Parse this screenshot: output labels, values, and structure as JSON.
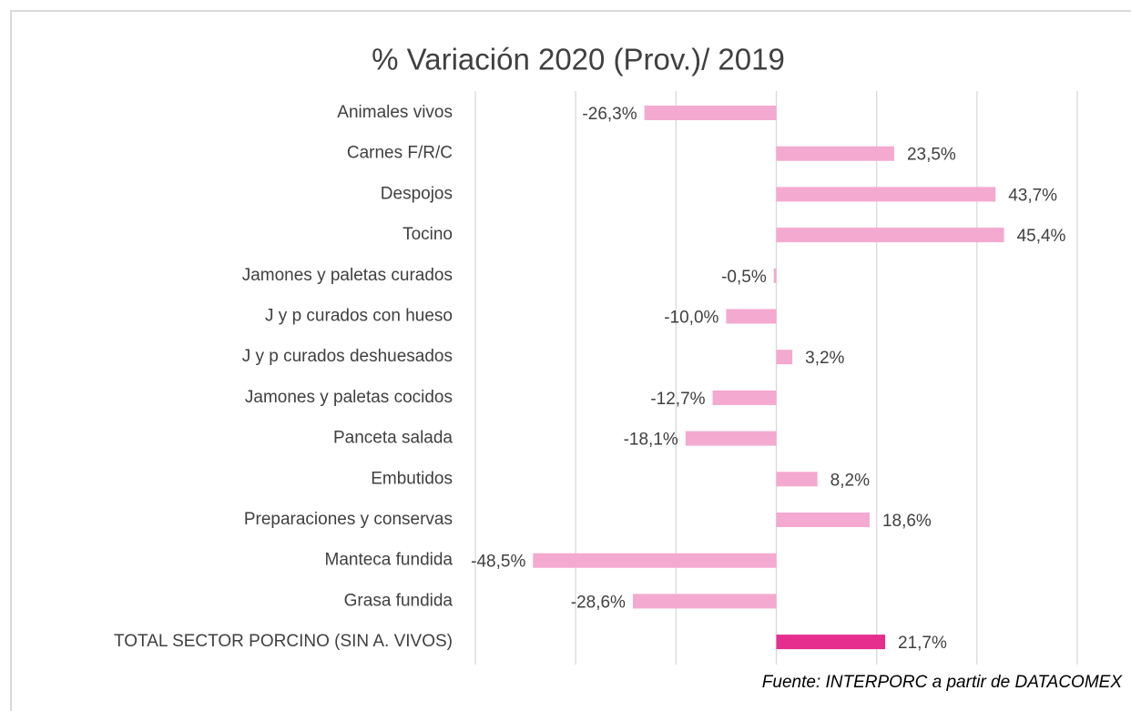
{
  "chart_data": {
    "type": "bar",
    "orientation": "horizontal",
    "title": "% Variación 2020 (Prov.)/ 2019",
    "categories": [
      "Animales vivos",
      "Carnes F/R/C",
      "Despojos",
      "Tocino",
      "Jamones y paletas curados",
      "J y p curados con hueso",
      "J y p curados deshuesados",
      "Jamones y paletas cocidos",
      "Panceta salada",
      "Embutidos",
      "Preparaciones y conservas",
      "Manteca fundida",
      "Grasa fundida",
      "TOTAL SECTOR PORCINO (SIN A. VIVOS)"
    ],
    "values": [
      -26.3,
      23.5,
      43.7,
      45.4,
      -0.5,
      -10.0,
      3.2,
      -12.7,
      -18.1,
      8.2,
      18.6,
      -48.5,
      -28.6,
      21.7
    ],
    "value_labels": [
      "-26,3%",
      "23,5%",
      "43,7%",
      "45,4%",
      "-0,5%",
      "-10,0%",
      "3,2%",
      "-12,7%",
      "-18,1%",
      "8,2%",
      "18,6%",
      "-48,5%",
      "-28,6%",
      "21,7%"
    ],
    "colors": [
      "#f4a9d0",
      "#f4a9d0",
      "#f4a9d0",
      "#f4a9d0",
      "#f4a9d0",
      "#f4a9d0",
      "#f4a9d0",
      "#f4a9d0",
      "#f4a9d0",
      "#f4a9d0",
      "#f4a9d0",
      "#f4a9d0",
      "#f4a9d0",
      "#e62e8e"
    ],
    "xlim": [
      -60,
      60
    ],
    "xticks": [
      -60,
      -40,
      -20,
      0,
      20,
      40,
      60
    ],
    "grid": true,
    "source": "Fuente: INTERPORC  a partir de DATACOMEX"
  }
}
